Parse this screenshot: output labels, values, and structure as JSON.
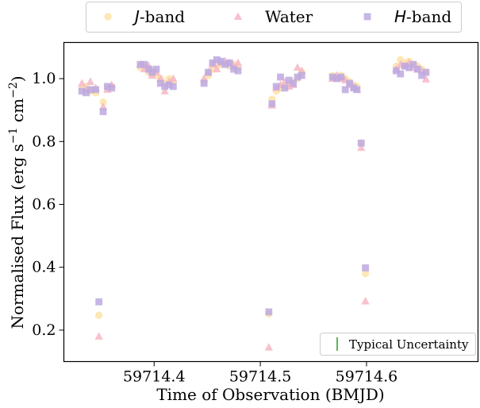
{
  "chart_data": {
    "type": "scatter",
    "xlabel": "Time of Observation (BMJD)",
    "ylabel_parts": [
      "Normalised Flux (erg s",
      "−1",
      " cm",
      "−2",
      ")"
    ],
    "xlim": [
      59714.315,
      59714.705
    ],
    "ylim": [
      0.1,
      1.115
    ],
    "xticks": [
      59714.4,
      59714.5,
      59714.6
    ],
    "xtick_labels": [
      "59714.4",
      "59714.5",
      "59714.6"
    ],
    "yticks": [
      0.2,
      0.4,
      0.6,
      0.8,
      1.0
    ],
    "ytick_labels": [
      "0.2",
      "0.4",
      "0.6",
      "0.8",
      "1.0"
    ],
    "legend_position": "top-center",
    "series": [
      {
        "name_parts": [
          "J",
          "-band"
        ],
        "name_italic_first": true,
        "marker": "circle",
        "color": "#fde3a7",
        "points": [
          [
            59714.332,
            0.97
          ],
          [
            59714.336,
            0.975
          ],
          [
            59714.34,
            0.96
          ],
          [
            59714.345,
            0.955
          ],
          [
            59714.348,
            0.247
          ],
          [
            59714.352,
            0.925
          ],
          [
            59714.356,
            0.97
          ],
          [
            59714.36,
            0.975
          ],
          [
            59714.387,
            1.035
          ],
          [
            59714.391,
            1.04
          ],
          [
            59714.395,
            1.02
          ],
          [
            59714.398,
            1.025
          ],
          [
            59714.402,
            1.01
          ],
          [
            59714.406,
            1.0
          ],
          [
            59714.41,
            0.985
          ],
          [
            59714.414,
            1.0
          ],
          [
            59714.418,
            0.99
          ],
          [
            59714.447,
            0.99
          ],
          [
            59714.451,
            1.01
          ],
          [
            59714.455,
            1.03
          ],
          [
            59714.459,
            1.04
          ],
          [
            59714.463,
            1.045
          ],
          [
            59714.467,
            1.05
          ],
          [
            59714.471,
            1.04
          ],
          [
            59714.475,
            1.045
          ],
          [
            59714.479,
            1.035
          ],
          [
            59714.508,
            0.252
          ],
          [
            59714.511,
            0.935
          ],
          [
            59714.515,
            0.96
          ],
          [
            59714.519,
            0.97
          ],
          [
            59714.523,
            0.98
          ],
          [
            59714.527,
            0.985
          ],
          [
            59714.531,
            0.99
          ],
          [
            59714.535,
            1.0
          ],
          [
            59714.539,
            1.02
          ],
          [
            59714.568,
            1.01
          ],
          [
            59714.572,
            1.005
          ],
          [
            59714.576,
            1.01
          ],
          [
            59714.58,
            1.0
          ],
          [
            59714.584,
            0.99
          ],
          [
            59714.588,
            0.98
          ],
          [
            59714.591,
            0.975
          ],
          [
            59714.595,
            0.795
          ],
          [
            59714.599,
            0.38
          ],
          [
            59714.628,
            1.04
          ],
          [
            59714.632,
            1.06
          ],
          [
            59714.636,
            1.05
          ],
          [
            59714.64,
            1.055
          ],
          [
            59714.644,
            1.045
          ],
          [
            59714.648,
            1.04
          ],
          [
            59714.652,
            1.03
          ],
          [
            59714.656,
            1.02
          ]
        ]
      },
      {
        "name_parts": [
          "Water"
        ],
        "name_italic_first": false,
        "marker": "triangle",
        "color": "#f7b6c6",
        "points": [
          [
            59714.332,
            0.985
          ],
          [
            59714.336,
            0.965
          ],
          [
            59714.34,
            0.99
          ],
          [
            59714.345,
            0.97
          ],
          [
            59714.348,
            0.18
          ],
          [
            59714.352,
            0.91
          ],
          [
            59714.356,
            0.965
          ],
          [
            59714.36,
            0.98
          ],
          [
            59714.387,
            1.045
          ],
          [
            59714.391,
            1.03
          ],
          [
            59714.395,
            1.04
          ],
          [
            59714.398,
            1.01
          ],
          [
            59714.402,
            1.02
          ],
          [
            59714.406,
            1.0
          ],
          [
            59714.41,
            0.96
          ],
          [
            59714.414,
            0.99
          ],
          [
            59714.418,
            1.0
          ],
          [
            59714.447,
            1.0
          ],
          [
            59714.451,
            1.02
          ],
          [
            59714.455,
            1.045
          ],
          [
            59714.459,
            1.03
          ],
          [
            59714.463,
            1.05
          ],
          [
            59714.467,
            1.055
          ],
          [
            59714.471,
            1.05
          ],
          [
            59714.475,
            1.04
          ],
          [
            59714.479,
            1.05
          ],
          [
            59714.508,
            0.145
          ],
          [
            59714.511,
            0.915
          ],
          [
            59714.515,
            0.97
          ],
          [
            59714.519,
            0.98
          ],
          [
            59714.523,
            0.99
          ],
          [
            59714.527,
            0.975
          ],
          [
            59714.531,
            0.98
          ],
          [
            59714.535,
            1.035
          ],
          [
            59714.539,
            1.025
          ],
          [
            59714.568,
            1.0
          ],
          [
            59714.572,
            1.01
          ],
          [
            59714.576,
            1.0
          ],
          [
            59714.58,
            0.995
          ],
          [
            59714.584,
            0.98
          ],
          [
            59714.588,
            0.975
          ],
          [
            59714.591,
            0.965
          ],
          [
            59714.595,
            0.78
          ],
          [
            59714.599,
            0.292
          ],
          [
            59714.628,
            1.03
          ],
          [
            59714.632,
            1.045
          ],
          [
            59714.636,
            1.04
          ],
          [
            59714.64,
            1.05
          ],
          [
            59714.644,
            1.035
          ],
          [
            59714.648,
            1.03
          ],
          [
            59714.652,
            1.025
          ],
          [
            59714.656,
            0.998
          ]
        ]
      },
      {
        "name_parts": [
          "H",
          "-band"
        ],
        "name_italic_first": true,
        "marker": "square",
        "color": "#bda9e1",
        "points": [
          [
            59714.332,
            0.96
          ],
          [
            59714.336,
            0.955
          ],
          [
            59714.34,
            0.965
          ],
          [
            59714.345,
            0.965
          ],
          [
            59714.348,
            0.29
          ],
          [
            59714.352,
            0.895
          ],
          [
            59714.356,
            0.975
          ],
          [
            59714.36,
            0.97
          ],
          [
            59714.387,
            1.045
          ],
          [
            59714.391,
            1.045
          ],
          [
            59714.395,
            1.03
          ],
          [
            59714.398,
            1.02
          ],
          [
            59714.402,
            1.03
          ],
          [
            59714.406,
            0.985
          ],
          [
            59714.41,
            0.975
          ],
          [
            59714.414,
            0.98
          ],
          [
            59714.418,
            0.975
          ],
          [
            59714.447,
            0.985
          ],
          [
            59714.451,
            1.02
          ],
          [
            59714.455,
            1.05
          ],
          [
            59714.459,
            1.06
          ],
          [
            59714.463,
            1.055
          ],
          [
            59714.467,
            1.045
          ],
          [
            59714.471,
            1.05
          ],
          [
            59714.475,
            1.03
          ],
          [
            59714.479,
            1.025
          ],
          [
            59714.508,
            0.258
          ],
          [
            59714.511,
            0.92
          ],
          [
            59714.515,
            0.975
          ],
          [
            59714.519,
            1.005
          ],
          [
            59714.523,
            0.97
          ],
          [
            59714.527,
            0.995
          ],
          [
            59714.531,
            0.985
          ],
          [
            59714.535,
            1.005
          ],
          [
            59714.539,
            1.01
          ],
          [
            59714.568,
            1.005
          ],
          [
            59714.572,
            1.0
          ],
          [
            59714.576,
            1.005
          ],
          [
            59714.58,
            0.965
          ],
          [
            59714.584,
            0.985
          ],
          [
            59714.588,
            0.97
          ],
          [
            59714.591,
            0.965
          ],
          [
            59714.595,
            0.795
          ],
          [
            59714.599,
            0.398
          ],
          [
            59714.628,
            1.025
          ],
          [
            59714.632,
            1.015
          ],
          [
            59714.636,
            1.04
          ],
          [
            59714.64,
            1.035
          ],
          [
            59714.644,
            1.045
          ],
          [
            59714.648,
            1.03
          ],
          [
            59714.652,
            1.01
          ],
          [
            59714.656,
            1.02
          ]
        ]
      }
    ],
    "annotation": {
      "text": "Typical Uncertainty",
      "color": "#5cb85c",
      "position": "bottom-right"
    }
  }
}
